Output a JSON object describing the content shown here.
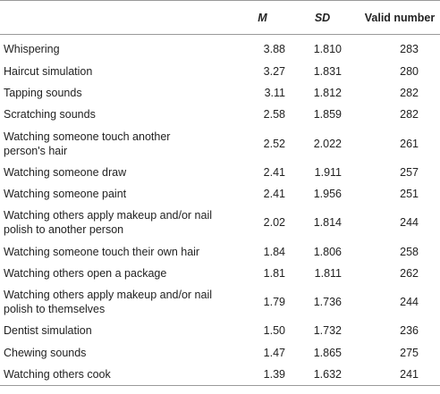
{
  "table": {
    "headers": {
      "label": "",
      "m": "M",
      "sd": "SD",
      "valid_number": "Valid number"
    },
    "rows": [
      {
        "label": "Whispering",
        "m": "3.88",
        "sd": "1.810",
        "n": "283"
      },
      {
        "label": "Haircut simulation",
        "m": "3.27",
        "sd": "1.831",
        "n": "280"
      },
      {
        "label": "Tapping sounds",
        "m": "3.11",
        "sd": "1.812",
        "n": "282"
      },
      {
        "label": "Scratching sounds",
        "m": "2.58",
        "sd": "1.859",
        "n": "282"
      },
      {
        "label_line1": "Watching someone touch another",
        "label_line2": "person's hair",
        "m": "2.52",
        "sd": "2.022",
        "n": "261"
      },
      {
        "label": "Watching someone draw",
        "m": "2.41",
        "sd": "1.911",
        "n": "257"
      },
      {
        "label": "Watching someone paint",
        "m": "2.41",
        "sd": "1.956",
        "n": "251"
      },
      {
        "label_line1": "Watching others apply makeup and/or nail",
        "label_line2": "polish to another person",
        "m": "2.02",
        "sd": "1.814",
        "n": "244"
      },
      {
        "label": "Watching someone touch their own hair",
        "m": "1.84",
        "sd": "1.806",
        "n": "258"
      },
      {
        "label": "Watching others open a package",
        "m": "1.81",
        "sd": "1.811",
        "n": "262"
      },
      {
        "label_line1": "Watching others apply makeup and/or nail",
        "label_line2": "polish to themselves",
        "m": "1.79",
        "sd": "1.736",
        "n": "244"
      },
      {
        "label": "Dentist simulation",
        "m": "1.50",
        "sd": "1.732",
        "n": "236"
      },
      {
        "label": "Chewing sounds",
        "m": "1.47",
        "sd": "1.865",
        "n": "275"
      },
      {
        "label": "Watching others cook",
        "m": "1.39",
        "sd": "1.632",
        "n": "241"
      }
    ]
  }
}
